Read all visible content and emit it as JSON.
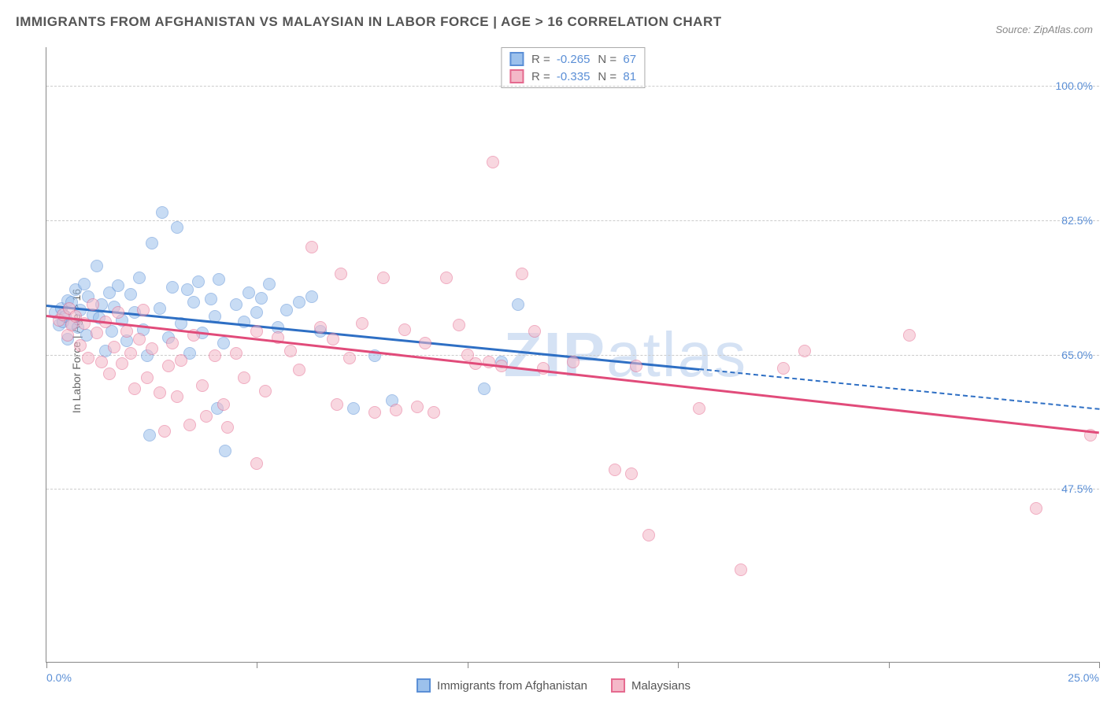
{
  "title": "IMMIGRANTS FROM AFGHANISTAN VS MALAYSIAN IN LABOR FORCE | AGE > 16 CORRELATION CHART",
  "source": "Source: ZipAtlas.com",
  "ylabel": "In Labor Force | Age > 16",
  "watermark": {
    "bold": "ZIP",
    "light": "atlas"
  },
  "chart": {
    "type": "scatter",
    "xlim": [
      0,
      25
    ],
    "ylim": [
      25,
      105
    ],
    "xticks_at": [
      0,
      5,
      10,
      15,
      20,
      25
    ],
    "xtick_labels": {
      "0": "0.0%",
      "25": "25.0%"
    },
    "yticks": [
      {
        "v": 47.5,
        "label": "47.5%"
      },
      {
        "v": 65.0,
        "label": "65.0%"
      },
      {
        "v": 82.5,
        "label": "82.5%"
      },
      {
        "v": 100.0,
        "label": "100.0%"
      }
    ],
    "background_color": "#ffffff",
    "grid_color": "#cccccc",
    "point_radius": 8,
    "point_opacity": 0.55,
    "series": [
      {
        "name": "Immigrants from Afghanistan",
        "fill": "#9cc1ec",
        "stroke": "#5b8fd6",
        "trend_color": "#2e6fc4",
        "R": "-0.265",
        "N": "67",
        "trend": {
          "x0": 0,
          "y0": 71.5,
          "x1_solid": 15.5,
          "y1_solid": 63.2,
          "x1_dash": 25,
          "y1_dash": 58.0
        },
        "points": [
          [
            0.2,
            70.5
          ],
          [
            0.3,
            68.8
          ],
          [
            0.35,
            71.0
          ],
          [
            0.4,
            69.2
          ],
          [
            0.45,
            70.0
          ],
          [
            0.5,
            72.0
          ],
          [
            0.5,
            67.0
          ],
          [
            0.6,
            71.8
          ],
          [
            0.6,
            69.0
          ],
          [
            0.7,
            73.5
          ],
          [
            0.75,
            68.5
          ],
          [
            0.8,
            70.8
          ],
          [
            0.9,
            74.2
          ],
          [
            0.95,
            67.5
          ],
          [
            1.0,
            72.5
          ],
          [
            1.1,
            70.2
          ],
          [
            1.2,
            76.5
          ],
          [
            1.25,
            69.8
          ],
          [
            1.3,
            71.5
          ],
          [
            1.4,
            65.5
          ],
          [
            1.5,
            73.0
          ],
          [
            1.55,
            68.0
          ],
          [
            1.6,
            71.2
          ],
          [
            1.7,
            74.0
          ],
          [
            1.8,
            69.5
          ],
          [
            1.9,
            66.8
          ],
          [
            2.0,
            72.8
          ],
          [
            2.1,
            70.5
          ],
          [
            2.2,
            75.0
          ],
          [
            2.3,
            68.2
          ],
          [
            2.4,
            64.8
          ],
          [
            2.45,
            54.5
          ],
          [
            2.5,
            79.5
          ],
          [
            2.7,
            71.0
          ],
          [
            2.75,
            83.5
          ],
          [
            2.9,
            67.2
          ],
          [
            3.0,
            73.8
          ],
          [
            3.1,
            81.5
          ],
          [
            3.2,
            69.0
          ],
          [
            3.35,
            73.5
          ],
          [
            3.4,
            65.2
          ],
          [
            3.5,
            71.8
          ],
          [
            3.6,
            74.5
          ],
          [
            3.7,
            67.8
          ],
          [
            3.9,
            72.2
          ],
          [
            4.0,
            70.0
          ],
          [
            4.05,
            58.0
          ],
          [
            4.1,
            74.8
          ],
          [
            4.2,
            66.5
          ],
          [
            4.25,
            52.5
          ],
          [
            4.5,
            71.5
          ],
          [
            4.7,
            69.2
          ],
          [
            4.8,
            73.0
          ],
          [
            5.0,
            70.5
          ],
          [
            5.1,
            72.3
          ],
          [
            5.3,
            74.2
          ],
          [
            5.5,
            68.5
          ],
          [
            5.7,
            70.8
          ],
          [
            6.0,
            71.8
          ],
          [
            6.3,
            72.5
          ],
          [
            6.5,
            68.0
          ],
          [
            7.3,
            58.0
          ],
          [
            7.8,
            64.8
          ],
          [
            8.2,
            59.0
          ],
          [
            10.4,
            60.5
          ],
          [
            10.8,
            64.0
          ],
          [
            11.2,
            71.5
          ]
        ]
      },
      {
        "name": "Malaysians",
        "fill": "#f4b8c8",
        "stroke": "#e56a8f",
        "trend_color": "#e14b7a",
        "R": "-0.335",
        "N": "81",
        "trend": {
          "x0": 0,
          "y0": 70.2,
          "x1_solid": 25,
          "y1_solid": 55.0,
          "x1_dash": 25,
          "y1_dash": 55.0
        },
        "points": [
          [
            0.3,
            69.5
          ],
          [
            0.4,
            70.2
          ],
          [
            0.5,
            67.5
          ],
          [
            0.55,
            71.0
          ],
          [
            0.6,
            68.8
          ],
          [
            0.7,
            70.0
          ],
          [
            0.8,
            66.2
          ],
          [
            0.9,
            69.0
          ],
          [
            1.0,
            64.5
          ],
          [
            1.1,
            71.5
          ],
          [
            1.2,
            67.8
          ],
          [
            1.3,
            64.0
          ],
          [
            1.4,
            69.2
          ],
          [
            1.5,
            62.5
          ],
          [
            1.6,
            66.0
          ],
          [
            1.7,
            70.5
          ],
          [
            1.8,
            63.8
          ],
          [
            1.9,
            68.0
          ],
          [
            2.0,
            65.2
          ],
          [
            2.1,
            60.5
          ],
          [
            2.2,
            67.0
          ],
          [
            2.3,
            70.8
          ],
          [
            2.4,
            62.0
          ],
          [
            2.5,
            65.8
          ],
          [
            2.7,
            60.0
          ],
          [
            2.8,
            55.0
          ],
          [
            2.9,
            63.5
          ],
          [
            3.0,
            66.5
          ],
          [
            3.1,
            59.5
          ],
          [
            3.2,
            64.2
          ],
          [
            3.4,
            55.8
          ],
          [
            3.5,
            67.5
          ],
          [
            3.7,
            61.0
          ],
          [
            3.8,
            57.0
          ],
          [
            4.0,
            64.8
          ],
          [
            4.2,
            58.5
          ],
          [
            4.3,
            55.5
          ],
          [
            4.5,
            65.2
          ],
          [
            4.7,
            62.0
          ],
          [
            5.0,
            68.0
          ],
          [
            5.0,
            50.8
          ],
          [
            5.2,
            60.2
          ],
          [
            5.5,
            67.2
          ],
          [
            5.8,
            65.5
          ],
          [
            6.0,
            63.0
          ],
          [
            6.3,
            79.0
          ],
          [
            6.5,
            68.5
          ],
          [
            6.8,
            67.0
          ],
          [
            6.9,
            58.5
          ],
          [
            7.0,
            75.5
          ],
          [
            7.2,
            64.5
          ],
          [
            7.5,
            69.0
          ],
          [
            7.8,
            57.5
          ],
          [
            8.0,
            75.0
          ],
          [
            8.3,
            57.8
          ],
          [
            8.5,
            68.2
          ],
          [
            8.8,
            58.2
          ],
          [
            9.0,
            66.5
          ],
          [
            9.2,
            57.5
          ],
          [
            9.5,
            75.0
          ],
          [
            9.8,
            68.8
          ],
          [
            10.0,
            65.0
          ],
          [
            10.2,
            63.8
          ],
          [
            10.5,
            64.0
          ],
          [
            10.6,
            90.0
          ],
          [
            10.8,
            63.5
          ],
          [
            11.3,
            75.5
          ],
          [
            11.6,
            68.0
          ],
          [
            11.8,
            63.2
          ],
          [
            12.5,
            64.0
          ],
          [
            13.5,
            50.0
          ],
          [
            13.9,
            49.5
          ],
          [
            14.0,
            63.5
          ],
          [
            14.3,
            41.5
          ],
          [
            15.5,
            58.0
          ],
          [
            16.5,
            37.0
          ],
          [
            17.5,
            63.2
          ],
          [
            18.0,
            65.5
          ],
          [
            20.5,
            67.5
          ],
          [
            23.5,
            45.0
          ],
          [
            24.8,
            54.5
          ]
        ]
      }
    ]
  },
  "bottom_legend": [
    {
      "fill": "#9cc1ec",
      "stroke": "#5b8fd6",
      "label": "Immigrants from Afghanistan"
    },
    {
      "fill": "#f4b8c8",
      "stroke": "#e56a8f",
      "label": "Malaysians"
    }
  ]
}
